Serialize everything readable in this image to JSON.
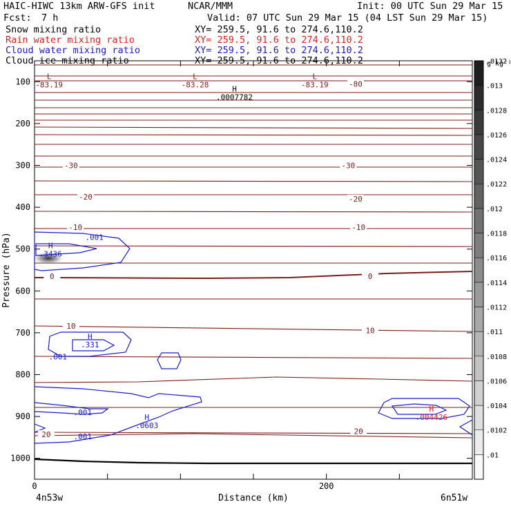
{
  "header": {
    "model": "HAIC-HIWC 13km ARW-GFS init",
    "agency": "NCAR/MMM",
    "init": "Init: 00 UTC Sun 29 Mar 15",
    "fcst_label": "Fcst:",
    "fcst_value": "7 h",
    "valid": "Valid: 07 UTC Sun 29 Mar 15 (04 LST Sun 29 Mar 15)",
    "fields": [
      {
        "name": "Snow mixing ratio",
        "xy": "XY= 259.5, 91.6 to 274.6,110.2",
        "color": "#000000"
      },
      {
        "name": "Rain water mixing ratio",
        "xy": "XY= 259.5, 91.6 to 274.6,110.2",
        "color": "#e02020"
      },
      {
        "name": "Cloud water mixing ratio",
        "xy": "XY= 259.5, 91.6 to 274.6,110.2",
        "color": "#1a1acc"
      },
      {
        "name": "Cloud ice mixing ratio",
        "xy": "XY= 259.5, 91.6 to 274.6,110.2",
        "color": "#000000"
      }
    ]
  },
  "chart_data": {
    "type": "contour",
    "xlabel": "Distance (km)",
    "ylabel": "Pressure (hPa)",
    "xlim": [
      0,
      300
    ],
    "ylim": [
      1050,
      50
    ],
    "x_ticks": [
      0,
      50,
      100,
      150,
      200,
      250,
      300
    ],
    "x_tick_labels": [
      "0",
      "200"
    ],
    "y_ticks": [
      100,
      200,
      300,
      400,
      500,
      600,
      700,
      800,
      900,
      1000
    ],
    "y_tick_labels": [
      "100",
      "200",
      "300",
      "400",
      "500",
      "600",
      "700",
      "800",
      "900",
      "1000"
    ],
    "x_endpoint_labels": {
      "left": "4n53w",
      "right": "6n51w"
    },
    "colorbar": {
      "unit": "g kg⁻¹",
      "levels": [
        ".01",
        ".0102",
        ".0104",
        ".0106",
        ".0108",
        ".011",
        ".0112",
        ".0114",
        ".0116",
        ".0118",
        ".012",
        ".0122",
        ".0124",
        ".0126",
        ".0128",
        ".013",
        ".0132"
      ]
    },
    "temperature_labels": [
      {
        "text": "-80",
        "x": 220,
        "p": 105
      },
      {
        "text": "-30",
        "x": 25,
        "p": 300
      },
      {
        "text": "-30",
        "x": 215,
        "p": 300
      },
      {
        "text": "-20",
        "x": 35,
        "p": 375
      },
      {
        "text": "-20",
        "x": 220,
        "p": 380
      },
      {
        "text": "-10",
        "x": 28,
        "p": 448
      },
      {
        "text": "-10",
        "x": 222,
        "p": 448
      },
      {
        "text": "0",
        "x": 12,
        "p": 565
      },
      {
        "text": "0",
        "x": 230,
        "p": 565
      },
      {
        "text": "10",
        "x": 25,
        "p": 684
      },
      {
        "text": "10",
        "x": 230,
        "p": 694
      },
      {
        "text": "20",
        "x": 8,
        "p": 943
      },
      {
        "text": "20",
        "x": 222,
        "p": 935
      }
    ],
    "extrema_labels": [
      {
        "mark": "L",
        "value": "-83.19",
        "x": 10,
        "p": 100,
        "color": "#7a1a1a"
      },
      {
        "mark": "L",
        "value": "-83.28",
        "x": 110,
        "p": 100,
        "color": "#7a1a1a"
      },
      {
        "mark": "L",
        "value": "-83.19",
        "x": 192,
        "p": 100,
        "color": "#7a1a1a"
      },
      {
        "mark": "H",
        "value": ".0007782",
        "x": 137,
        "p": 130,
        "color": "#000000"
      },
      {
        "mark": "H",
        "value": ".3436",
        "x": 11,
        "p": 505,
        "color": "#1a1acc"
      },
      {
        "mark": "H",
        "value": ".331",
        "x": 38,
        "p": 722,
        "color": "#1a1acc"
      },
      {
        "mark": "H",
        "value": ".0603",
        "x": 77,
        "p": 915,
        "color": "#1a1acc"
      },
      {
        "mark": "H",
        "value": ".004426",
        "x": 272,
        "p": 895,
        "color": "#e02020"
      }
    ],
    "cloud_water_labels": [
      {
        "text": ".001",
        "x": 41,
        "p": 472
      },
      {
        "text": ".001",
        "x": 16,
        "p": 757
      },
      {
        "text": ".001",
        "x": 33,
        "p": 890
      },
      {
        "text": ".001",
        "x": 33,
        "p": 948
      }
    ]
  }
}
